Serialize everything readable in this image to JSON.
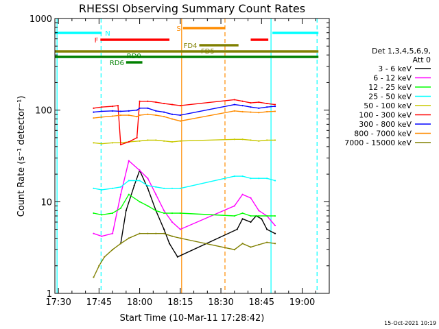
{
  "chart_data": {
    "type": "line",
    "title": "RHESSI Observing Summary Count Rates",
    "xlabel": "Start Time (10-Mar-11 17:28:42)",
    "ylabel": "Count Rate (s⁻¹ detector⁻¹)",
    "timestamp": "15-Oct-2021 10:19",
    "y_scale": "log",
    "ylim": [
      1,
      1000
    ],
    "xlim": [
      "17:28:42",
      "19:10:00"
    ],
    "y_ticks": [
      "1",
      "10",
      "100",
      "1000"
    ],
    "x_ticks": [
      "17:30",
      "17:45",
      "18:00",
      "18:15",
      "18:30",
      "18:45",
      "19:00"
    ],
    "legend": {
      "position": "right",
      "header": [
        "Det 1,3,4,5,6,9,",
        "Att 0"
      ],
      "entries": [
        {
          "label": "3 - 6 keV",
          "color": "#000000"
        },
        {
          "label": "6 - 12 keV",
          "color": "#ff00ff"
        },
        {
          "label": "12 - 25 keV",
          "color": "#00ff00"
        },
        {
          "label": "25 - 50 keV",
          "color": "#00ffff"
        },
        {
          "label": "50 - 100 keV",
          "color": "#c8c800"
        },
        {
          "label": "100 - 300 keV",
          "color": "#ff0000"
        },
        {
          "label": "300 - 800 keV",
          "color": "#0000ff"
        },
        {
          "label": "800 - 7000 keV",
          "color": "#ff8c00"
        },
        {
          "label": "7000 - 15000 keV",
          "color": "#808000"
        }
      ]
    },
    "intervals": [
      {
        "label": "N",
        "color": "#00ffff",
        "segments": [
          [
            "17:28:42",
            "17:46:00"
          ],
          [
            "18:49:00",
            "19:06:00"
          ]
        ]
      },
      {
        "label": "S",
        "color": "#ff8c00",
        "segments": [
          [
            "18:16:00",
            "18:31:30"
          ]
        ]
      },
      {
        "label": "F",
        "color": "#ff0000",
        "segments": [
          [
            "17:45:30",
            "18:11:00"
          ],
          [
            "18:41:00",
            "18:47:30"
          ]
        ]
      },
      {
        "label": "FD4",
        "color": "#808000",
        "segments": [
          [
            "18:22:00",
            "18:36:30"
          ]
        ]
      },
      {
        "label": "FD5",
        "color": "#808000",
        "segments": [
          [
            "17:28:42",
            "19:06:00"
          ]
        ]
      },
      {
        "label": "RD0",
        "color": "#008000",
        "segments": [
          [
            "17:28:42",
            "19:06:00"
          ]
        ]
      },
      {
        "label": "RD6",
        "color": "#008000",
        "segments": [
          [
            "17:55:00",
            "18:01:00"
          ]
        ]
      }
    ],
    "vertical_lines": [
      {
        "time": "17:29:30",
        "color": "#00ffff",
        "style": "solid"
      },
      {
        "time": "17:45:45",
        "color": "#00ffff",
        "style": "dashed"
      },
      {
        "time": "18:15:30",
        "color": "#ff8c00",
        "style": "solid"
      },
      {
        "time": "18:31:30",
        "color": "#ff8c00",
        "style": "dashed"
      },
      {
        "time": "18:48:30",
        "color": "#00ffff",
        "style": "solid"
      },
      {
        "time": "19:05:30",
        "color": "#00ffff",
        "style": "dashed"
      }
    ],
    "series": [
      {
        "name": "3 - 6 keV",
        "color": "#000000",
        "x": [
          "17:43",
          "17:50",
          "17:53",
          "17:55",
          "17:58",
          "18:00",
          "18:03",
          "18:06",
          "18:09",
          "18:11",
          "18:14",
          "18:36",
          "18:38",
          "18:41",
          "18:43",
          "18:45",
          "18:47",
          "18:50"
        ],
        "y": [
          null,
          null,
          3.5,
          8,
          15,
          22,
          14,
          8,
          5,
          3.5,
          2.5,
          5,
          6.5,
          6,
          7,
          6.5,
          5,
          4.5
        ],
        "segments": [
          [
            "17:52",
            "18:15"
          ],
          [
            "18:35",
            "18:51"
          ]
        ]
      },
      {
        "name": "6 - 12 keV",
        "color": "#ff00ff",
        "x": [
          "17:43",
          "17:46",
          "17:50",
          "17:53",
          "17:56",
          "18:00",
          "18:03",
          "18:06",
          "18:09",
          "18:12",
          "18:15",
          "18:35",
          "18:38",
          "18:41",
          "18:44",
          "18:47",
          "18:50"
        ],
        "y": [
          4.5,
          4.2,
          4.5,
          12,
          28,
          22,
          18,
          12,
          8,
          6,
          5,
          9,
          12,
          11,
          8,
          7,
          5.5
        ],
        "segments": [
          [
            "17:43",
            "18:15"
          ],
          [
            "18:35",
            "18:51"
          ]
        ]
      },
      {
        "name": "12 - 25 keV",
        "color": "#00ff00",
        "x": [
          "17:43",
          "17:46",
          "17:50",
          "17:53",
          "17:56",
          "18:00",
          "18:03",
          "18:06",
          "18:09",
          "18:12",
          "18:15",
          "18:35",
          "18:38",
          "18:41",
          "18:44",
          "18:47",
          "18:50"
        ],
        "y": [
          7.5,
          7.2,
          7.5,
          8.5,
          12,
          10,
          9,
          8,
          7.5,
          7.5,
          7.5,
          7,
          7.5,
          7,
          7,
          7,
          7
        ],
        "segments": [
          [
            "17:43",
            "18:15"
          ],
          [
            "18:35",
            "18:51"
          ]
        ]
      },
      {
        "name": "25 - 50 keV",
        "color": "#00ffff",
        "x": [
          "17:43",
          "17:46",
          "17:50",
          "17:53",
          "17:56",
          "18:00",
          "18:03",
          "18:06",
          "18:09",
          "18:12",
          "18:15",
          "18:35",
          "18:38",
          "18:41",
          "18:44",
          "18:47",
          "18:50"
        ],
        "y": [
          14,
          13.5,
          14,
          14.5,
          17,
          17,
          15,
          14.5,
          14,
          14,
          14,
          19,
          19,
          18,
          18,
          18,
          17
        ],
        "segments": [
          [
            "17:43",
            "18:15"
          ],
          [
            "18:35",
            "18:51"
          ]
        ]
      },
      {
        "name": "50 - 100 keV",
        "color": "#c8c800",
        "x": [
          "17:43",
          "17:46",
          "17:50",
          "17:53",
          "17:56",
          "18:00",
          "18:03",
          "18:06",
          "18:09",
          "18:12",
          "18:15",
          "18:35",
          "18:38",
          "18:41",
          "18:44",
          "18:47",
          "18:50"
        ],
        "y": [
          44,
          43,
          44,
          44,
          45,
          46,
          47,
          47,
          46,
          45,
          46,
          48,
          48,
          47,
          46,
          47,
          47
        ],
        "segments": [
          [
            "17:43",
            "18:15"
          ],
          [
            "18:35",
            "18:51"
          ]
        ]
      },
      {
        "name": "100 - 300 keV",
        "color": "#ff0000",
        "x": [
          "17:43",
          "17:46",
          "17:50",
          "17:52",
          "17:53",
          "17:56",
          "17:59",
          "18:00",
          "18:03",
          "18:06",
          "18:09",
          "18:12",
          "18:15",
          "18:35",
          "18:38",
          "18:41",
          "18:44",
          "18:47",
          "18:50"
        ],
        "y": [
          105,
          108,
          110,
          112,
          42,
          45,
          50,
          125,
          125,
          122,
          118,
          115,
          112,
          130,
          125,
          120,
          122,
          118,
          115
        ],
        "segments": [
          [
            "17:43",
            "18:15"
          ],
          [
            "18:35",
            "18:51"
          ]
        ]
      },
      {
        "name": "300 - 800 keV",
        "color": "#0000ff",
        "x": [
          "17:43",
          "17:46",
          "17:50",
          "17:53",
          "17:56",
          "17:59",
          "18:00",
          "18:03",
          "18:06",
          "18:09",
          "18:12",
          "18:15",
          "18:35",
          "18:38",
          "18:41",
          "18:44",
          "18:47",
          "18:50"
        ],
        "y": [
          95,
          97,
          98,
          97,
          98,
          100,
          105,
          105,
          98,
          95,
          90,
          88,
          115,
          112,
          108,
          105,
          108,
          110
        ],
        "segments": [
          [
            "17:43",
            "18:15"
          ],
          [
            "18:35",
            "18:51"
          ]
        ]
      },
      {
        "name": "800 - 7000 keV",
        "color": "#ff8c00",
        "x": [
          "17:43",
          "17:46",
          "17:50",
          "17:53",
          "17:56",
          "17:59",
          "18:00",
          "18:03",
          "18:06",
          "18:09",
          "18:12",
          "18:15",
          "18:35",
          "18:38",
          "18:41",
          "18:44",
          "18:47",
          "18:50"
        ],
        "y": [
          82,
          84,
          86,
          88,
          88,
          85,
          88,
          90,
          88,
          85,
          80,
          76,
          98,
          96,
          95,
          94,
          96,
          97
        ],
        "segments": [
          [
            "17:43",
            "18:15"
          ],
          [
            "18:35",
            "18:51"
          ]
        ]
      },
      {
        "name": "7000 - 15000 keV",
        "color": "#808000",
        "x": [
          "17:43",
          "17:45",
          "17:47",
          "17:50",
          "17:53",
          "17:56",
          "18:00",
          "18:03",
          "18:06",
          "18:09",
          "18:12",
          "18:15",
          "18:35",
          "18:38",
          "18:41",
          "18:44",
          "18:47",
          "18:50"
        ],
        "y": [
          1.5,
          2,
          2.5,
          3,
          3.5,
          4,
          4.5,
          4.5,
          4.5,
          4.5,
          4.2,
          4,
          3,
          3.5,
          3.2,
          3.4,
          3.6,
          3.5
        ],
        "segments": [
          [
            "17:43",
            "18:15"
          ],
          [
            "18:35",
            "18:51"
          ]
        ]
      }
    ]
  }
}
